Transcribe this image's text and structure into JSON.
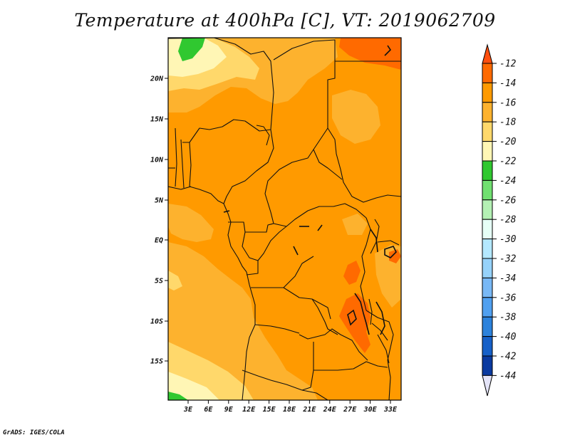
{
  "title": "Temperature at 400hPa [C], VT: 2019062709",
  "credit": "GrADS: IGES/COLA",
  "map": {
    "lat_ticks": [
      "20N",
      "15N",
      "10N",
      "5N",
      "EQ",
      "5S",
      "10S",
      "15S"
    ],
    "lon_ticks": [
      "3E",
      "6E",
      "9E",
      "12E",
      "15E",
      "18E",
      "21E",
      "24E",
      "27E",
      "30E",
      "33E"
    ]
  },
  "colorbar": {
    "levels": [
      "-12",
      "-14",
      "-16",
      "-18",
      "-20",
      "-22",
      "-24",
      "-26",
      "-28",
      "-30",
      "-32",
      "-34",
      "-36",
      "-38",
      "-40",
      "-42",
      "-44"
    ],
    "colors": [
      "#ff4f0f",
      "#ff6a00",
      "#ff9a00",
      "#fdb22e",
      "#ffd86b",
      "#fff6b5",
      "#30c830",
      "#70e070",
      "#b4f0b4",
      "#e6fff6",
      "#b4e8ff",
      "#96d2fa",
      "#78b8f5",
      "#50a0f0",
      "#2c82dc",
      "#1660c8",
      "#0a3aa0",
      "#0a1670",
      "#e4e4f8"
    ]
  }
}
